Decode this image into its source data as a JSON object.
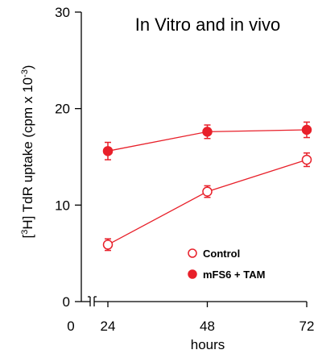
{
  "chart_data": {
    "type": "line",
    "title": "In Vitro and in vivo",
    "xlabel": "hours",
    "ylabel_parts": [
      "[",
      "3",
      "H] TdR uptake (cpm x 10",
      "-3",
      ")"
    ],
    "x_ticks": [
      0,
      24,
      48,
      72
    ],
    "y_ticks": [
      0,
      10,
      20,
      30
    ],
    "xlim": [
      0,
      72
    ],
    "ylim": [
      0,
      30
    ],
    "axis_break": true,
    "grid": false,
    "legend_position": "bottom-right",
    "series": [
      {
        "name": "Control",
        "marker": "open-circle",
        "color": "#e8202a",
        "x": [
          24,
          48,
          72
        ],
        "y": [
          5.9,
          11.4,
          14.7
        ],
        "err": [
          0.6,
          0.6,
          0.7
        ]
      },
      {
        "name": "mFS6 + TAM",
        "marker": "filled-circle",
        "color": "#e8202a",
        "x": [
          24,
          48,
          72
        ],
        "y": [
          15.6,
          17.6,
          17.8
        ],
        "err": [
          0.9,
          0.7,
          0.8
        ]
      }
    ]
  }
}
